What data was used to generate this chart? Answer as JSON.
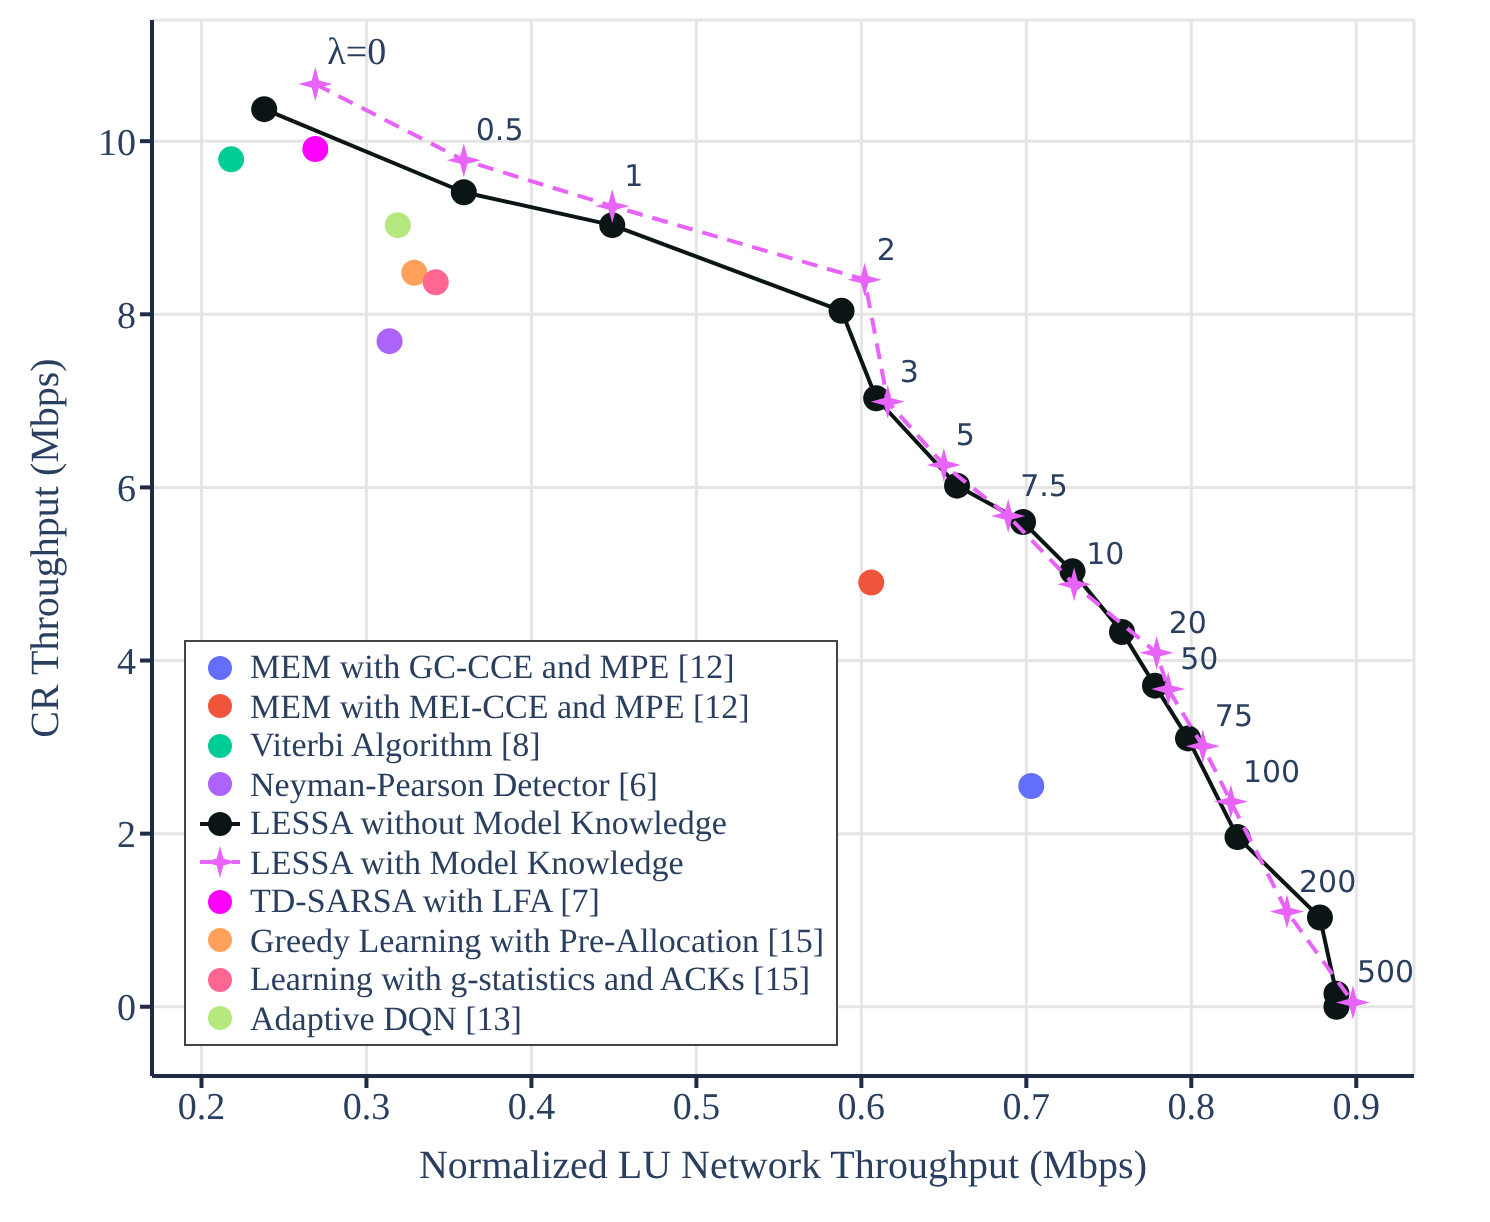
{
  "chart_data": {
    "type": "scatter",
    "xlabel": "Normalized LU Network Throughput (Mbps)",
    "ylabel": "CR Throughput (Mbps)",
    "xlim": [
      0.17,
      0.935
    ],
    "ylim": [
      -0.8,
      11.4
    ],
    "xticks": [
      0.2,
      0.3,
      0.4,
      0.5,
      0.6,
      0.7,
      0.8,
      0.9
    ],
    "yticks": [
      0,
      2,
      4,
      6,
      8,
      10
    ],
    "grid": true,
    "legend": "bottom left",
    "series": [
      {
        "name": "MEM with GC-CCE and MPE [12]",
        "marker": "circle",
        "color": "#636efa",
        "x": [
          0.703
        ],
        "values": [
          2.55
        ]
      },
      {
        "name": "MEM with MEI-CCE and MPE [12]",
        "marker": "circle",
        "color": "#ef553b",
        "x": [
          0.606
        ],
        "values": [
          4.9
        ]
      },
      {
        "name": "Viterbi Algorithm [8]",
        "marker": "circle",
        "color": "#00cc96",
        "x": [
          0.218
        ],
        "values": [
          9.79
        ]
      },
      {
        "name": "Neyman-Pearson Detector [6]",
        "marker": "circle",
        "color": "#ab63fa",
        "x": [
          0.314
        ],
        "values": [
          7.69
        ]
      },
      {
        "name": "LESSA without Model Knowledge",
        "type": "line",
        "marker": "circle",
        "line_style": "solid",
        "color": "#0b1516",
        "x": [
          0.238,
          0.359,
          0.449,
          0.588,
          0.609,
          0.658,
          0.698,
          0.728,
          0.758,
          0.778,
          0.798,
          0.828,
          0.878,
          0.888,
          0.888
        ],
        "values": [
          10.37,
          9.41,
          9.03,
          8.04,
          7.03,
          6.02,
          5.6,
          5.03,
          4.33,
          3.71,
          3.1,
          1.96,
          1.03,
          0.15,
          0.0
        ]
      },
      {
        "name": "LESSA with Model Knowledge",
        "type": "line",
        "marker": "star",
        "line_style": "dashed",
        "color": "#e763fa",
        "x": [
          0.269,
          0.359,
          0.449,
          0.602,
          0.616,
          0.65,
          0.689,
          0.729,
          0.779,
          0.786,
          0.807,
          0.824,
          0.858,
          0.898
        ],
        "values": [
          10.66,
          9.78,
          9.25,
          8.4,
          6.99,
          6.26,
          5.67,
          4.88,
          4.09,
          3.67,
          3.01,
          2.37,
          1.1,
          0.05
        ]
      },
      {
        "name": "TD-SARSA with LFA [7]",
        "marker": "circle",
        "color": "#ff00ff",
        "x": [
          0.269
        ],
        "values": [
          9.91
        ]
      },
      {
        "name": "Greedy Learning with Pre-Allocation [15]",
        "marker": "circle",
        "color": "#ffa15a",
        "x": [
          0.329
        ],
        "values": [
          8.48
        ]
      },
      {
        "name": "Learning with g-statistics and ACKs [15]",
        "marker": "circle",
        "color": "#ff6692",
        "x": [
          0.342
        ],
        "values": [
          8.37
        ]
      },
      {
        "name": "Adaptive DQN [13]",
        "marker": "circle",
        "color": "#b6e880",
        "x": [
          0.319
        ],
        "values": [
          9.03
        ]
      }
    ],
    "annotations": [
      {
        "text": "λ=0",
        "x": 0.269,
        "y": 10.66
      },
      {
        "text": "0.5",
        "x": 0.359,
        "y": 9.78
      },
      {
        "text": "1",
        "x": 0.449,
        "y": 9.25
      },
      {
        "text": "2",
        "x": 0.602,
        "y": 8.4
      },
      {
        "text": "3",
        "x": 0.616,
        "y": 6.99
      },
      {
        "text": "5",
        "x": 0.65,
        "y": 6.26
      },
      {
        "text": "7.5",
        "x": 0.689,
        "y": 5.67
      },
      {
        "text": "10",
        "x": 0.729,
        "y": 4.88
      },
      {
        "text": "20",
        "x": 0.779,
        "y": 4.09
      },
      {
        "text": "50",
        "x": 0.786,
        "y": 3.67
      },
      {
        "text": "75",
        "x": 0.807,
        "y": 3.01
      },
      {
        "text": "100",
        "x": 0.824,
        "y": 2.37
      },
      {
        "text": "200",
        "x": 0.858,
        "y": 1.1
      },
      {
        "text": "500",
        "x": 0.898,
        "y": 0.05
      }
    ]
  }
}
